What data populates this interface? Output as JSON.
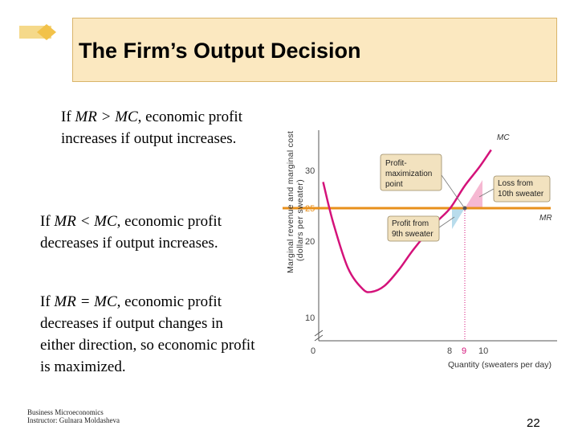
{
  "slide": {
    "title": "The Firm’s Output Decision",
    "page_number": "22",
    "footer_line1": "Business Microeconomics",
    "footer_line2": "Instructor: Gulnara Moldasheva"
  },
  "text": {
    "p1_prefix": "If ",
    "p1_var": "MR > MC",
    "p1_rest": ", economic profit increases if output increases.",
    "p2_prefix": "If ",
    "p2_var": "MR < MC",
    "p2_rest": ", economic profit decreases if output increases.",
    "p3_prefix": "If ",
    "p3_var": "MR = MC",
    "p3_rest": ", economic profit decreases if output changes in either direction, so economic profit is maximized."
  },
  "colors": {
    "title_bg": "#fbe8c0",
    "mc_curve": "#d4127a",
    "mr_line": "#e8901c",
    "loss_area": "#f6b8d2",
    "profit_area": "#b8dcec",
    "callout_bg": "#f2e2bf"
  },
  "chart_data": {
    "type": "line",
    "ylabel": "Marginal revenue and marginal cost (dollars per sweater)",
    "xlabel": "Quantity (sweaters per day)",
    "x_ticks": [
      "0",
      "8",
      "9",
      "10"
    ],
    "y_ticks": [
      "10",
      "20",
      "25",
      "30"
    ],
    "series": [
      {
        "name": "MC",
        "points": [
          [
            0.3,
            28.5
          ],
          [
            1.0,
            23.0
          ],
          [
            2.0,
            17.0
          ],
          [
            3.0,
            14.2
          ],
          [
            3.6,
            13.8
          ],
          [
            4.5,
            14.6
          ],
          [
            5.5,
            16.8
          ],
          [
            6.5,
            19.5
          ],
          [
            8.0,
            23.0
          ],
          [
            9.0,
            25.0
          ],
          [
            10.0,
            28.0
          ],
          [
            11.0,
            30.5
          ],
          [
            11.8,
            32.8
          ]
        ]
      },
      {
        "name": "MR",
        "points": [
          [
            0,
            25
          ],
          [
            12,
            25
          ]
        ]
      }
    ],
    "annotations": [
      "Profit-maximization point",
      "Loss from 10th sweater",
      "Profit from 9th sweater"
    ]
  }
}
